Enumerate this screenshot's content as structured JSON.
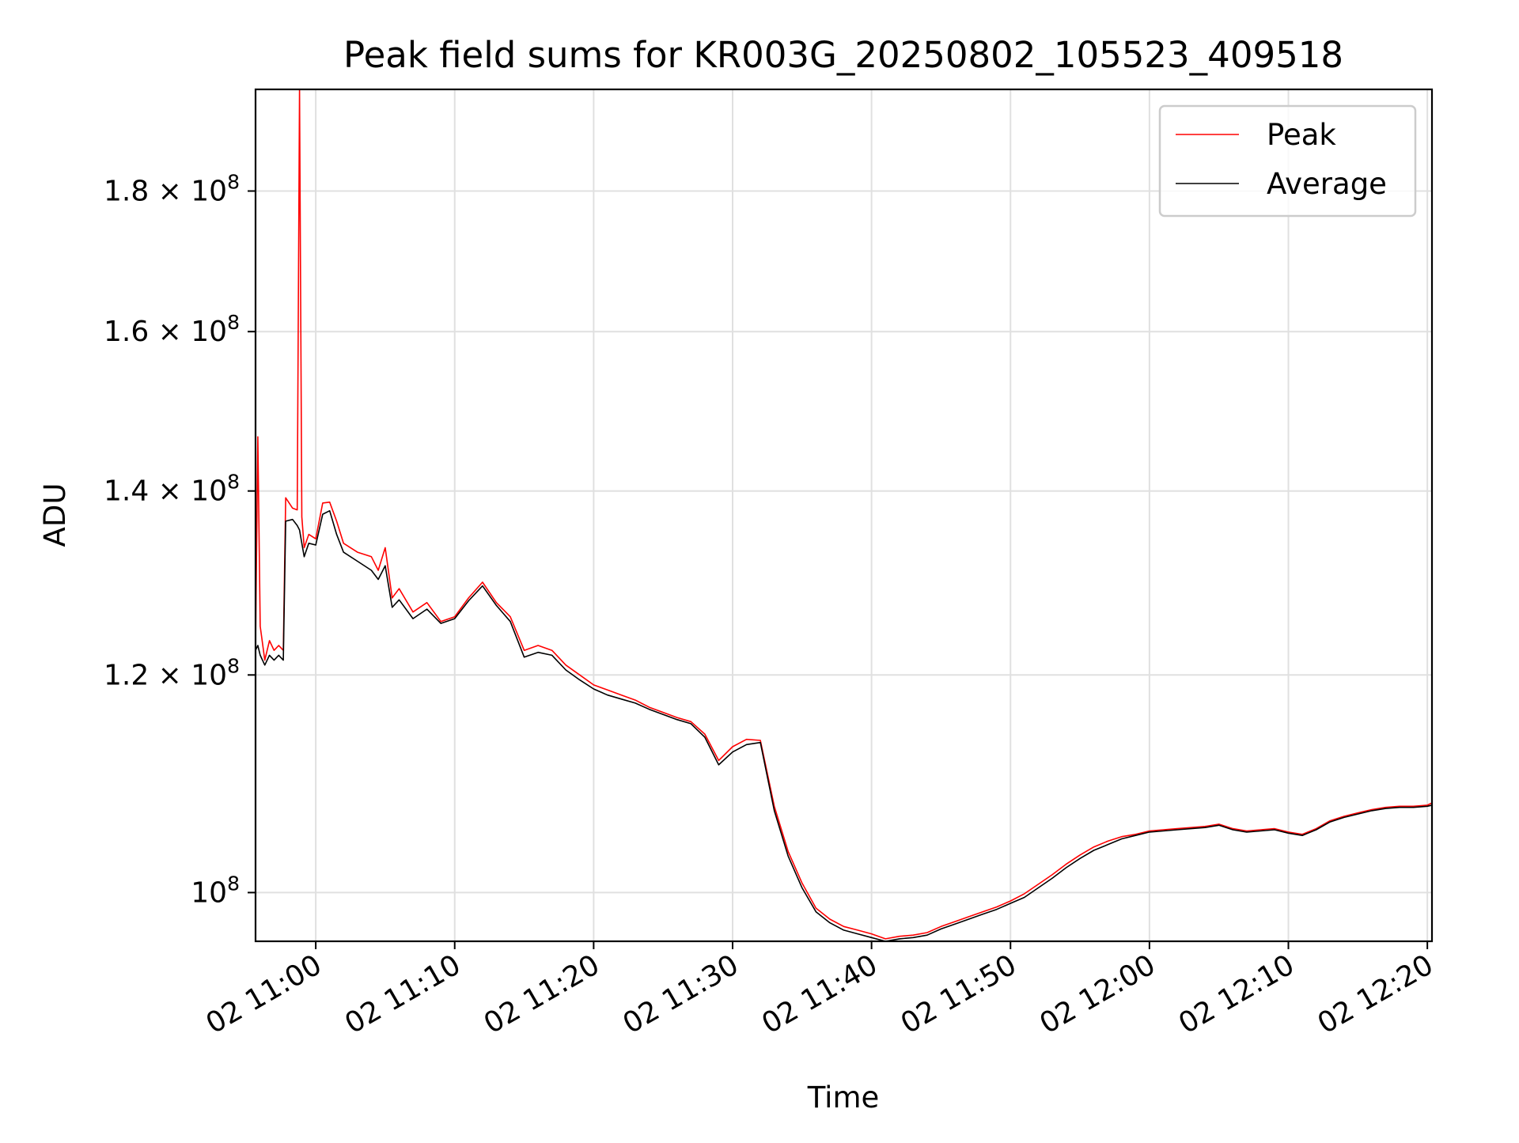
{
  "chart_data": {
    "type": "line",
    "title": "Peak field sums for KR003G_20250802_105523_409518",
    "xlabel": "Time",
    "ylabel": "ADU",
    "y_scale": "log",
    "ylim": [
      96000000,
      196000000
    ],
    "xlim": [
      "2025-08-02 10:55:40",
      "2025-08-02 12:20:20"
    ],
    "grid": true,
    "legend_position": "top-right",
    "x_ticks": [
      {
        "value": "2025-08-02 11:00",
        "label": "02 11:00"
      },
      {
        "value": "2025-08-02 11:10",
        "label": "02 11:10"
      },
      {
        "value": "2025-08-02 11:20",
        "label": "02 11:20"
      },
      {
        "value": "2025-08-02 11:30",
        "label": "02 11:30"
      },
      {
        "value": "2025-08-02 11:40",
        "label": "02 11:40"
      },
      {
        "value": "2025-08-02 11:50",
        "label": "02 11:50"
      },
      {
        "value": "2025-08-02 12:00",
        "label": "02 12:00"
      },
      {
        "value": "2025-08-02 12:10",
        "label": "02 12:10"
      },
      {
        "value": "2025-08-02 12:20",
        "label": "02 12:20"
      }
    ],
    "y_ticks": [
      {
        "value": 100000000,
        "mantissa": "",
        "exponent": "8"
      },
      {
        "value": 120000000,
        "mantissa": "1.2",
        "exponent": "8"
      },
      {
        "value": 140000000,
        "mantissa": "1.4",
        "exponent": "8"
      },
      {
        "value": 160000000,
        "mantissa": "1.6",
        "exponent": "8"
      },
      {
        "value": 180000000,
        "mantissa": "1.8",
        "exponent": "8"
      }
    ],
    "x": [
      "2025-08-02 10:55:40",
      "2025-08-02 10:55:50",
      "2025-08-02 10:56:00",
      "2025-08-02 10:56:20",
      "2025-08-02 10:56:40",
      "2025-08-02 10:57:00",
      "2025-08-02 10:57:20",
      "2025-08-02 10:57:40",
      "2025-08-02 10:57:50",
      "2025-08-02 10:58:20",
      "2025-08-02 10:58:40",
      "2025-08-02 10:58:50",
      "2025-08-02 10:59:00",
      "2025-08-02 10:59:10",
      "2025-08-02 10:59:30",
      "2025-08-02 11:00:00",
      "2025-08-02 11:00:30",
      "2025-08-02 11:01:00",
      "2025-08-02 11:01:30",
      "2025-08-02 11:02:00",
      "2025-08-02 11:03:00",
      "2025-08-02 11:04:00",
      "2025-08-02 11:04:30",
      "2025-08-02 11:05:00",
      "2025-08-02 11:05:30",
      "2025-08-02 11:06:00",
      "2025-08-02 11:07:00",
      "2025-08-02 11:08:00",
      "2025-08-02 11:09:00",
      "2025-08-02 11:10:00",
      "2025-08-02 11:11:00",
      "2025-08-02 11:12:00",
      "2025-08-02 11:13:00",
      "2025-08-02 11:14:00",
      "2025-08-02 11:15:00",
      "2025-08-02 11:16:00",
      "2025-08-02 11:17:00",
      "2025-08-02 11:18:00",
      "2025-08-02 11:19:00",
      "2025-08-02 11:20:00",
      "2025-08-02 11:21:00",
      "2025-08-02 11:22:00",
      "2025-08-02 11:23:00",
      "2025-08-02 11:24:00",
      "2025-08-02 11:25:00",
      "2025-08-02 11:26:00",
      "2025-08-02 11:27:00",
      "2025-08-02 11:28:00",
      "2025-08-02 11:29:00",
      "2025-08-02 11:30:00",
      "2025-08-02 11:31:00",
      "2025-08-02 11:32:00",
      "2025-08-02 11:33:00",
      "2025-08-02 11:34:00",
      "2025-08-02 11:35:00",
      "2025-08-02 11:36:00",
      "2025-08-02 11:37:00",
      "2025-08-02 11:38:00",
      "2025-08-02 11:39:00",
      "2025-08-02 11:40:00",
      "2025-08-02 11:41:00",
      "2025-08-02 11:42:00",
      "2025-08-02 11:43:00",
      "2025-08-02 11:44:00",
      "2025-08-02 11:45:00",
      "2025-08-02 11:46:00",
      "2025-08-02 11:47:00",
      "2025-08-02 11:48:00",
      "2025-08-02 11:49:00",
      "2025-08-02 11:50:00",
      "2025-08-02 11:51:00",
      "2025-08-02 11:52:00",
      "2025-08-02 11:53:00",
      "2025-08-02 11:54:00",
      "2025-08-02 11:55:00",
      "2025-08-02 11:56:00",
      "2025-08-02 11:57:00",
      "2025-08-02 11:58:00",
      "2025-08-02 11:59:00",
      "2025-08-02 12:00:00",
      "2025-08-02 12:01:00",
      "2025-08-02 12:02:00",
      "2025-08-02 12:03:00",
      "2025-08-02 12:04:00",
      "2025-08-02 12:05:00",
      "2025-08-02 12:06:00",
      "2025-08-02 12:07:00",
      "2025-08-02 12:08:00",
      "2025-08-02 12:09:00",
      "2025-08-02 12:10:00",
      "2025-08-02 12:11:00",
      "2025-08-02 12:12:00",
      "2025-08-02 12:13:00",
      "2025-08-02 12:14:00",
      "2025-08-02 12:15:00",
      "2025-08-02 12:16:00",
      "2025-08-02 12:17:00",
      "2025-08-02 12:18:00",
      "2025-08-02 12:19:00",
      "2025-08-02 12:20:00",
      "2025-08-02 12:20:20"
    ],
    "series": [
      {
        "name": "Peak",
        "color": "#ff0000",
        "values": [
          123000000,
          146500000,
          125000000,
          121500000,
          123500000,
          122500000,
          123000000,
          122500000,
          139200000,
          138000000,
          137800000,
          196000000,
          137000000,
          133500000,
          135000000,
          134500000,
          138600000,
          138700000,
          136500000,
          134000000,
          133000000,
          132500000,
          131000000,
          133500000,
          128000000,
          129000000,
          126500000,
          127500000,
          125500000,
          126000000,
          128000000,
          129700000,
          127500000,
          126000000,
          122500000,
          123000000,
          122500000,
          121000000,
          120000000,
          119000000,
          118500000,
          118000000,
          117500000,
          116800000,
          116300000,
          115800000,
          115400000,
          114200000,
          111700000,
          113000000,
          113700000,
          113600000,
          107500000,
          103500000,
          100800000,
          98700000,
          97800000,
          97200000,
          96900000,
          96600000,
          96200000,
          96400000,
          96500000,
          96700000,
          97200000,
          97600000,
          98000000,
          98400000,
          98800000,
          99300000,
          99900000,
          100700000,
          101500000,
          102400000,
          103200000,
          103900000,
          104400000,
          104800000,
          105000000,
          105300000,
          105400000,
          105500000,
          105600000,
          105700000,
          105900000,
          105500000,
          105300000,
          105400000,
          105500000,
          105200000,
          105000000,
          105500000,
          106200000,
          106600000,
          106900000,
          107200000,
          107400000,
          107500000,
          107500000,
          107600000,
          107800000
        ]
      },
      {
        "name": "Average",
        "color": "#000000",
        "values": [
          122500000,
          123000000,
          122000000,
          121000000,
          122000000,
          121500000,
          122000000,
          121500000,
          136500000,
          136700000,
          136000000,
          135500000,
          134000000,
          132500000,
          134000000,
          133800000,
          137300000,
          137700000,
          135000000,
          133000000,
          132000000,
          131000000,
          130000000,
          131500000,
          127000000,
          127800000,
          125800000,
          126800000,
          125300000,
          125800000,
          127700000,
          129300000,
          127200000,
          125500000,
          121800000,
          122300000,
          122000000,
          120500000,
          119500000,
          118600000,
          118000000,
          117600000,
          117200000,
          116600000,
          116100000,
          115600000,
          115200000,
          113900000,
          111300000,
          112500000,
          113200000,
          113400000,
          107100000,
          103100000,
          100400000,
          98400000,
          97500000,
          96900000,
          96600000,
          96300000,
          96000000,
          96200000,
          96300000,
          96500000,
          97000000,
          97400000,
          97800000,
          98200000,
          98600000,
          99100000,
          99600000,
          100400000,
          101200000,
          102100000,
          102900000,
          103600000,
          104100000,
          104600000,
          104900000,
          105200000,
          105300000,
          105400000,
          105500000,
          105600000,
          105800000,
          105400000,
          105200000,
          105300000,
          105400000,
          105100000,
          104900000,
          105400000,
          106100000,
          106500000,
          106800000,
          107100000,
          107300000,
          107400000,
          107400000,
          107500000,
          107600000
        ]
      }
    ]
  }
}
